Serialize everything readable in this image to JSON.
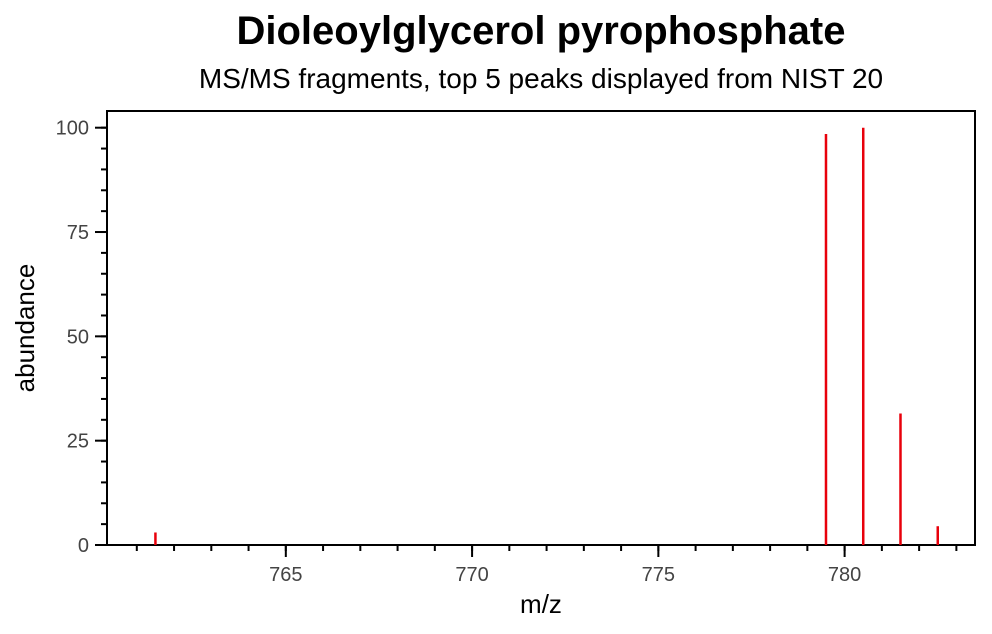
{
  "chart_data": {
    "type": "bar",
    "title": "Dioleoylglycerol pyrophosphate",
    "subtitle": "MS/MS fragments, top 5 peaks displayed from NIST 20",
    "xlabel": "m/z",
    "ylabel": "abundance",
    "xlim": [
      760.2,
      783.5
    ],
    "ylim": [
      0,
      104
    ],
    "x_ticks": [
      765,
      770,
      775,
      780
    ],
    "x_tick_labels": [
      "765",
      "770",
      "775",
      "780"
    ],
    "y_ticks": [
      0,
      25,
      50,
      75,
      100
    ],
    "y_tick_labels": [
      "0",
      "25",
      "50",
      "75",
      "100"
    ],
    "grid": false,
    "color": "#e8000b",
    "series": [
      {
        "x": [
          761.5,
          779.5,
          780.5,
          781.5,
          782.5
        ],
        "values": [
          3,
          98.5,
          100,
          31.5,
          4.5
        ]
      }
    ]
  }
}
